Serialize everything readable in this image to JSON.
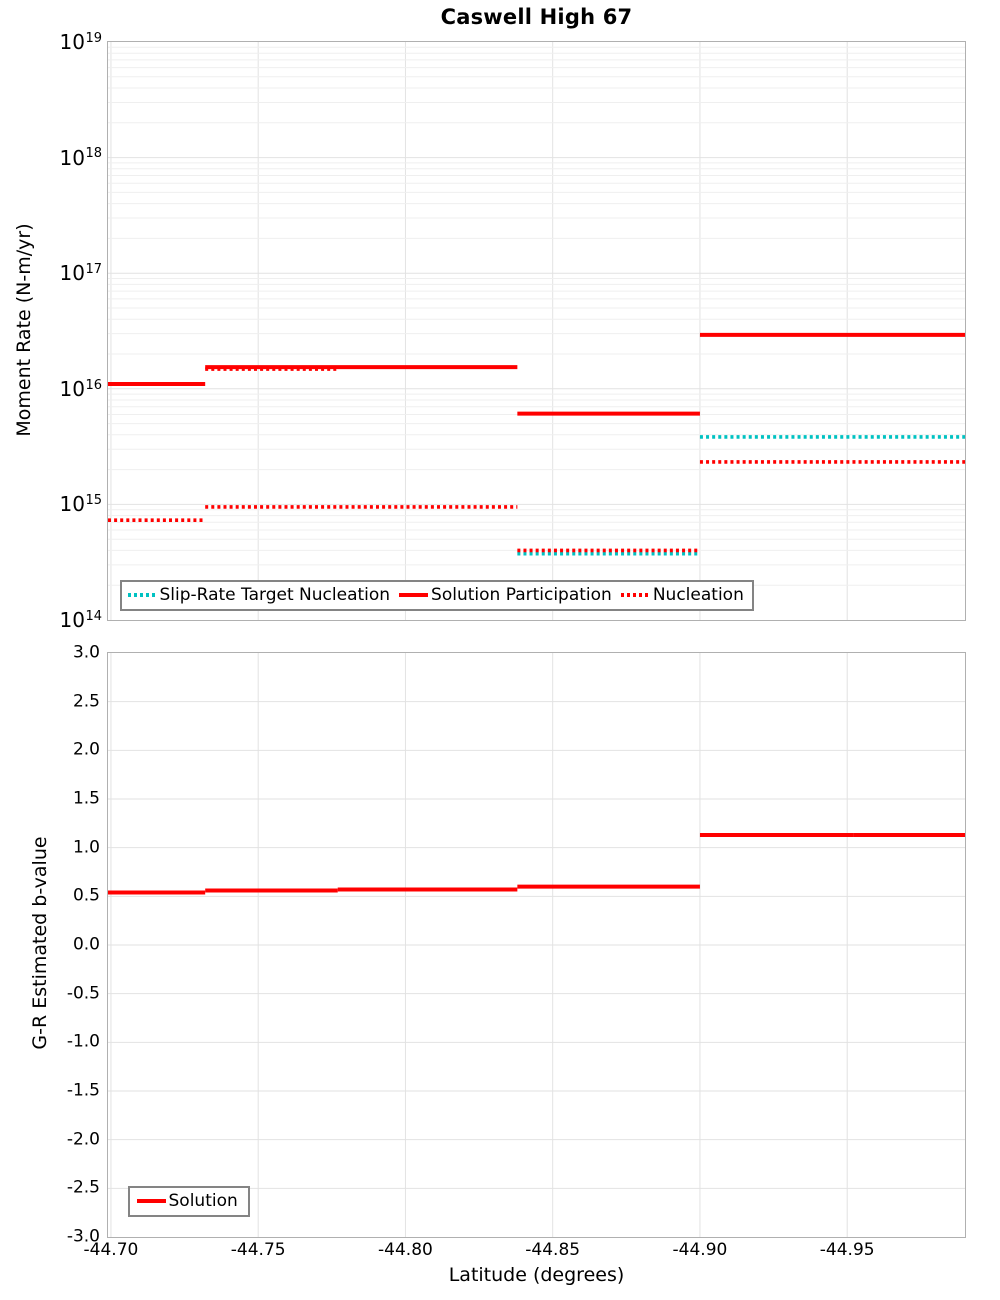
{
  "title": "Caswell High 67",
  "colors": {
    "solution_red": "#ff0000",
    "slip_rate_cyan": "#00c2c2",
    "grid_major": "#e2e2e2",
    "grid_minor": "#efefef",
    "plot_border": "#b0b0b0",
    "legend_border": "#848484"
  },
  "top_chart": {
    "ylabel": "Moment Rate (N-m/yr)",
    "y_ticks": [
      {
        "base": "10",
        "exp": "19",
        "value": 19
      },
      {
        "base": "10",
        "exp": "18",
        "value": 18
      },
      {
        "base": "10",
        "exp": "17",
        "value": 17
      },
      {
        "base": "10",
        "exp": "16",
        "value": 16
      },
      {
        "base": "10",
        "exp": "15",
        "value": 15
      },
      {
        "base": "10",
        "exp": "14",
        "value": 14
      }
    ],
    "legend": [
      {
        "label": "Slip-Rate Target Nucleation",
        "style": "dotted",
        "color": "#00c2c2"
      },
      {
        "label": "Solution Participation",
        "style": "solid",
        "color": "#ff0000"
      },
      {
        "label": "Nucleation",
        "style": "dotted",
        "color": "#ff0000"
      }
    ]
  },
  "bottom_chart": {
    "ylabel": "G-R Estimated b-value",
    "xlabel": "Latitude (degrees)",
    "y_ticks": [
      {
        "label": "3.0",
        "value": 3.0
      },
      {
        "label": "2.5",
        "value": 2.5
      },
      {
        "label": "2.0",
        "value": 2.0
      },
      {
        "label": "1.5",
        "value": 1.5
      },
      {
        "label": "1.0",
        "value": 1.0
      },
      {
        "label": "0.5",
        "value": 0.5
      },
      {
        "label": "0.0",
        "value": 0.0
      },
      {
        "label": "-0.5",
        "value": -0.5
      },
      {
        "label": "-1.0",
        "value": -1.0
      },
      {
        "label": "-1.5",
        "value": -1.5
      },
      {
        "label": "-2.0",
        "value": -2.0
      },
      {
        "label": "-2.5",
        "value": -2.5
      },
      {
        "label": "-3.0",
        "value": -3.0
      }
    ],
    "x_ticks": [
      {
        "label": "-44.70",
        "value": -44.7
      },
      {
        "label": "-44.75",
        "value": -44.75
      },
      {
        "label": "-44.80",
        "value": -44.8
      },
      {
        "label": "-44.85",
        "value": -44.85
      },
      {
        "label": "-44.90",
        "value": -44.9
      },
      {
        "label": "-44.95",
        "value": -44.95
      }
    ],
    "legend": [
      {
        "label": "Solution",
        "style": "solid",
        "color": "#ff0000"
      }
    ]
  },
  "chart_data": [
    {
      "type": "line",
      "subtype": "step-segments",
      "panel": "top",
      "title": "Caswell High 67",
      "ylabel": "Moment Rate (N-m/yr)",
      "y_axis": {
        "scale": "log10",
        "min": 100000000000000.0,
        "max": 1e+19,
        "minor_gridlines": true
      },
      "x_axis": {
        "label": "Latitude (degrees)",
        "min": -44.699,
        "max": -44.99,
        "reversed": true,
        "gridlines": [
          -44.7,
          -44.75,
          -44.8,
          -44.85,
          -44.9,
          -44.95
        ]
      },
      "legend_position": "bottom-left-inside",
      "series": [
        {
          "name": "Slip-Rate Target Nucleation",
          "color": "#00c2c2",
          "style": "dotted",
          "segments": [
            [
              -44.838,
              -44.9,
              375000000000000.0
            ],
            [
              -44.9,
              -44.99,
              3830000000000000.0
            ]
          ]
        },
        {
          "name": "Nucleation",
          "color": "#ff0000",
          "style": "dotted",
          "segments": [
            [
              -44.699,
              -44.732,
              730000000000000.0
            ],
            [
              -44.732,
              -44.838,
              950000000000000.0
            ],
            [
              -44.732,
              -44.777,
              1.48e+16
            ],
            [
              -44.838,
              -44.9,
              400000000000000.0
            ],
            [
              -44.9,
              -44.99,
              2330000000000000.0
            ]
          ]
        },
        {
          "name": "Solution Participation",
          "color": "#ff0000",
          "style": "solid",
          "segments": [
            [
              -44.699,
              -44.732,
              1.1e+16
            ],
            [
              -44.732,
              -44.838,
              1.54e+16
            ],
            [
              -44.838,
              -44.9,
              6100000000000000.0
            ],
            [
              -44.9,
              -44.99,
              2.93e+16
            ]
          ]
        }
      ]
    },
    {
      "type": "line",
      "subtype": "step-segments",
      "panel": "bottom",
      "ylabel": "G-R Estimated b-value",
      "xlabel": "Latitude (degrees)",
      "y_axis": {
        "scale": "linear",
        "min": -3.0,
        "max": 3.0,
        "tick_step": 0.5
      },
      "x_axis": {
        "label": "Latitude (degrees)",
        "min": -44.699,
        "max": -44.99,
        "reversed": true,
        "gridlines": [
          -44.7,
          -44.75,
          -44.8,
          -44.85,
          -44.9,
          -44.95
        ]
      },
      "legend_position": "bottom-left-inside",
      "series": [
        {
          "name": "Solution",
          "color": "#ff0000",
          "style": "solid",
          "segments": [
            [
              -44.699,
              -44.732,
              0.54
            ],
            [
              -44.732,
              -44.777,
              0.56
            ],
            [
              -44.777,
              -44.838,
              0.57
            ],
            [
              -44.838,
              -44.9,
              0.6
            ],
            [
              -44.9,
              -44.952,
              1.13
            ],
            [
              -44.952,
              -44.99,
              1.13
            ]
          ]
        }
      ]
    }
  ]
}
